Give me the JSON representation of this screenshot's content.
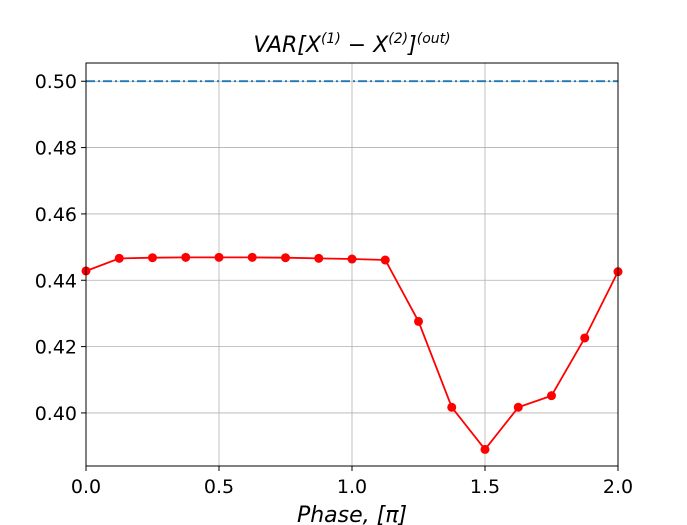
{
  "chart_data": {
    "type": "line",
    "title": {
      "main": "VAR[X",
      "sup1": "(1)",
      "mid": " − X",
      "sup2": "(2)",
      "close": "]",
      "sup3": "(out)"
    },
    "xlabel": {
      "text": "Phase, [π]"
    },
    "ylabel": "",
    "xlim": [
      0.0,
      2.0
    ],
    "ylim": [
      0.384,
      0.5055
    ],
    "grid": true,
    "x_ticks": [
      {
        "value": 0.0,
        "label": "0.0"
      },
      {
        "value": 0.5,
        "label": "0.5"
      },
      {
        "value": 1.0,
        "label": "1.0"
      },
      {
        "value": 1.5,
        "label": "1.5"
      },
      {
        "value": 2.0,
        "label": "2.0"
      }
    ],
    "y_ticks": [
      {
        "value": 0.4,
        "label": "0.40"
      },
      {
        "value": 0.42,
        "label": "0.42"
      },
      {
        "value": 0.44,
        "label": "0.44"
      },
      {
        "value": 0.46,
        "label": "0.46"
      },
      {
        "value": 0.48,
        "label": "0.48"
      },
      {
        "value": 0.5,
        "label": "0.50"
      }
    ],
    "series": [
      {
        "style": "solid-markers",
        "color": "#ff0000",
        "x": [
          0.0,
          0.125,
          0.25,
          0.375,
          0.5,
          0.625,
          0.75,
          0.875,
          1.0,
          1.125,
          1.25,
          1.375,
          1.5,
          1.625,
          1.75,
          1.875,
          2.0
        ],
        "y": [
          0.4428,
          0.4466,
          0.4468,
          0.4469,
          0.4469,
          0.4469,
          0.4468,
          0.4466,
          0.4464,
          0.4461,
          0.4276,
          0.4017,
          0.389,
          0.4017,
          0.4052,
          0.4226,
          0.4426
        ]
      },
      {
        "style": "dashdot",
        "color": "#1f77b4",
        "x": [
          0.0,
          2.0
        ],
        "y": [
          0.5,
          0.5
        ]
      }
    ]
  }
}
